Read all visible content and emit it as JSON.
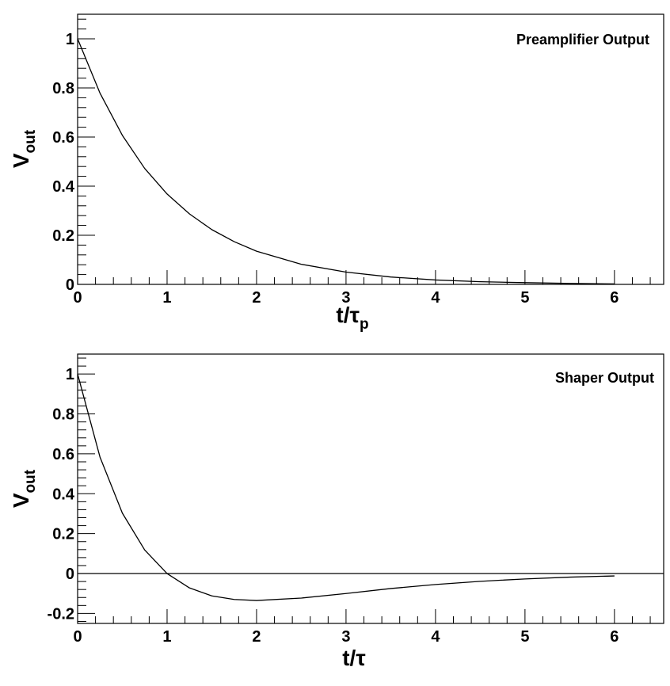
{
  "chart_data": [
    {
      "type": "line",
      "title": "Preamplifier Output",
      "xlabel": {
        "main": "t/τ",
        "sub": "p"
      },
      "ylabel": {
        "main": "V",
        "sub": "out"
      },
      "xlim": [
        0,
        6.55
      ],
      "ylim": [
        0,
        1.1
      ],
      "x_ticks": [
        0,
        1,
        2,
        3,
        4,
        5,
        6
      ],
      "x_tick_labels": [
        "0",
        "1",
        "2",
        "3",
        "4",
        "5",
        "6"
      ],
      "y_ticks": [
        0,
        0.2,
        0.4,
        0.6,
        0.8,
        1
      ],
      "y_tick_labels": [
        "0",
        "0.2",
        "0.4",
        "0.6",
        "0.8",
        "1"
      ],
      "grid": false,
      "zero_line": false,
      "series": [
        {
          "x": [
            0,
            0.25,
            0.5,
            0.75,
            1,
            1.25,
            1.5,
            1.75,
            2,
            2.5,
            3,
            3.5,
            4,
            4.5,
            5,
            5.5,
            6
          ],
          "y": [
            1,
            0.779,
            0.607,
            0.472,
            0.368,
            0.287,
            0.223,
            0.174,
            0.135,
            0.082,
            0.05,
            0.03,
            0.018,
            0.011,
            0.007,
            0.004,
            0.002
          ]
        }
      ]
    },
    {
      "type": "line",
      "title": "Shaper Output",
      "xlabel": {
        "main": "t/τ",
        "sub": ""
      },
      "ylabel": {
        "main": "V",
        "sub": "out"
      },
      "xlim": [
        0,
        6.55
      ],
      "ylim": [
        -0.25,
        1.1
      ],
      "x_ticks": [
        0,
        1,
        2,
        3,
        4,
        5,
        6
      ],
      "x_tick_labels": [
        "0",
        "1",
        "2",
        "3",
        "4",
        "5",
        "6"
      ],
      "y_ticks": [
        -0.2,
        0,
        0.2,
        0.4,
        0.6,
        0.8,
        1
      ],
      "y_tick_labels": [
        "-0.2",
        "0",
        "0.2",
        "0.4",
        "0.6",
        "0.8",
        "1"
      ],
      "grid": false,
      "zero_line": true,
      "series": [
        {
          "x": [
            0,
            0.25,
            0.5,
            0.75,
            1,
            1.25,
            1.5,
            1.75,
            2,
            2.5,
            3,
            3.5,
            4,
            4.5,
            5,
            5.5,
            6
          ],
          "y": [
            1,
            0.584,
            0.303,
            0.118,
            0,
            -0.072,
            -0.112,
            -0.13,
            -0.135,
            -0.123,
            -0.1,
            -0.075,
            -0.055,
            -0.039,
            -0.027,
            -0.018,
            -0.012
          ]
        }
      ]
    }
  ]
}
